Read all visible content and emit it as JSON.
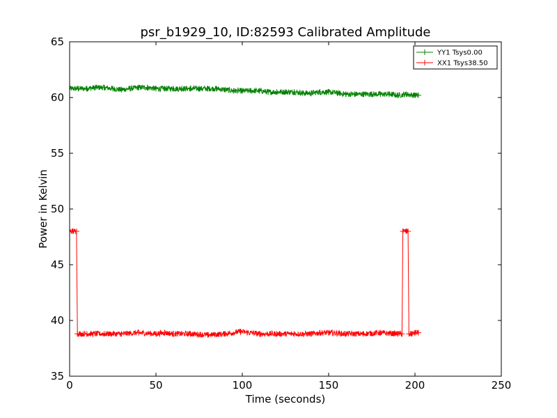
{
  "chart_data": {
    "type": "line",
    "title": "psr_b1929_10, ID:82593 Calibrated Amplitude",
    "xlabel": "Time (seconds)",
    "ylabel": "Power in Kelvin",
    "xlim": [
      0,
      250
    ],
    "ylim": [
      35,
      65
    ],
    "xticks": [
      0,
      50,
      100,
      150,
      200,
      250
    ],
    "yticks": [
      35,
      40,
      45,
      50,
      55,
      60,
      65
    ],
    "grid": false,
    "legend_position": "top-right",
    "marker": "+",
    "series": [
      {
        "name": "YY1 Tsys0.00",
        "color": "#008000",
        "noise": 0.25,
        "x": [
          0,
          5,
          10,
          15,
          20,
          25,
          30,
          35,
          40,
          45,
          50,
          55,
          60,
          65,
          70,
          75,
          80,
          85,
          90,
          95,
          100,
          105,
          110,
          115,
          120,
          125,
          130,
          135,
          140,
          145,
          150,
          155,
          160,
          165,
          170,
          175,
          180,
          185,
          190,
          195,
          200,
          202
        ],
        "y": [
          60.8,
          60.8,
          60.8,
          60.9,
          60.9,
          60.8,
          60.7,
          60.8,
          60.9,
          60.9,
          60.8,
          60.8,
          60.8,
          60.8,
          60.8,
          60.8,
          60.8,
          60.8,
          60.7,
          60.6,
          60.6,
          60.6,
          60.6,
          60.5,
          60.5,
          60.5,
          60.5,
          60.4,
          60.4,
          60.5,
          60.5,
          60.4,
          60.3,
          60.3,
          60.3,
          60.3,
          60.3,
          60.3,
          60.2,
          60.3,
          60.2,
          60.2
        ]
      },
      {
        "name": "XX1 Tsys38.50",
        "color": "#ff0000",
        "noise": 0.25,
        "x": [
          0,
          2,
          4,
          4.5,
          10,
          20,
          30,
          40,
          50,
          55,
          60,
          70,
          80,
          90,
          99,
          110,
          120,
          130,
          140,
          145,
          150,
          160,
          170,
          180,
          190,
          192.5,
          193,
          195,
          196,
          196.5,
          198,
          200,
          202
        ],
        "y": [
          48.0,
          48.0,
          48.0,
          38.8,
          38.8,
          38.8,
          38.8,
          38.9,
          38.8,
          38.9,
          38.8,
          38.8,
          38.7,
          38.8,
          39.0,
          38.8,
          38.8,
          38.8,
          38.8,
          38.9,
          38.9,
          38.8,
          38.8,
          38.9,
          38.8,
          38.8,
          48.0,
          48.0,
          48.0,
          38.8,
          38.8,
          38.9,
          38.9
        ]
      }
    ],
    "annotations": []
  }
}
